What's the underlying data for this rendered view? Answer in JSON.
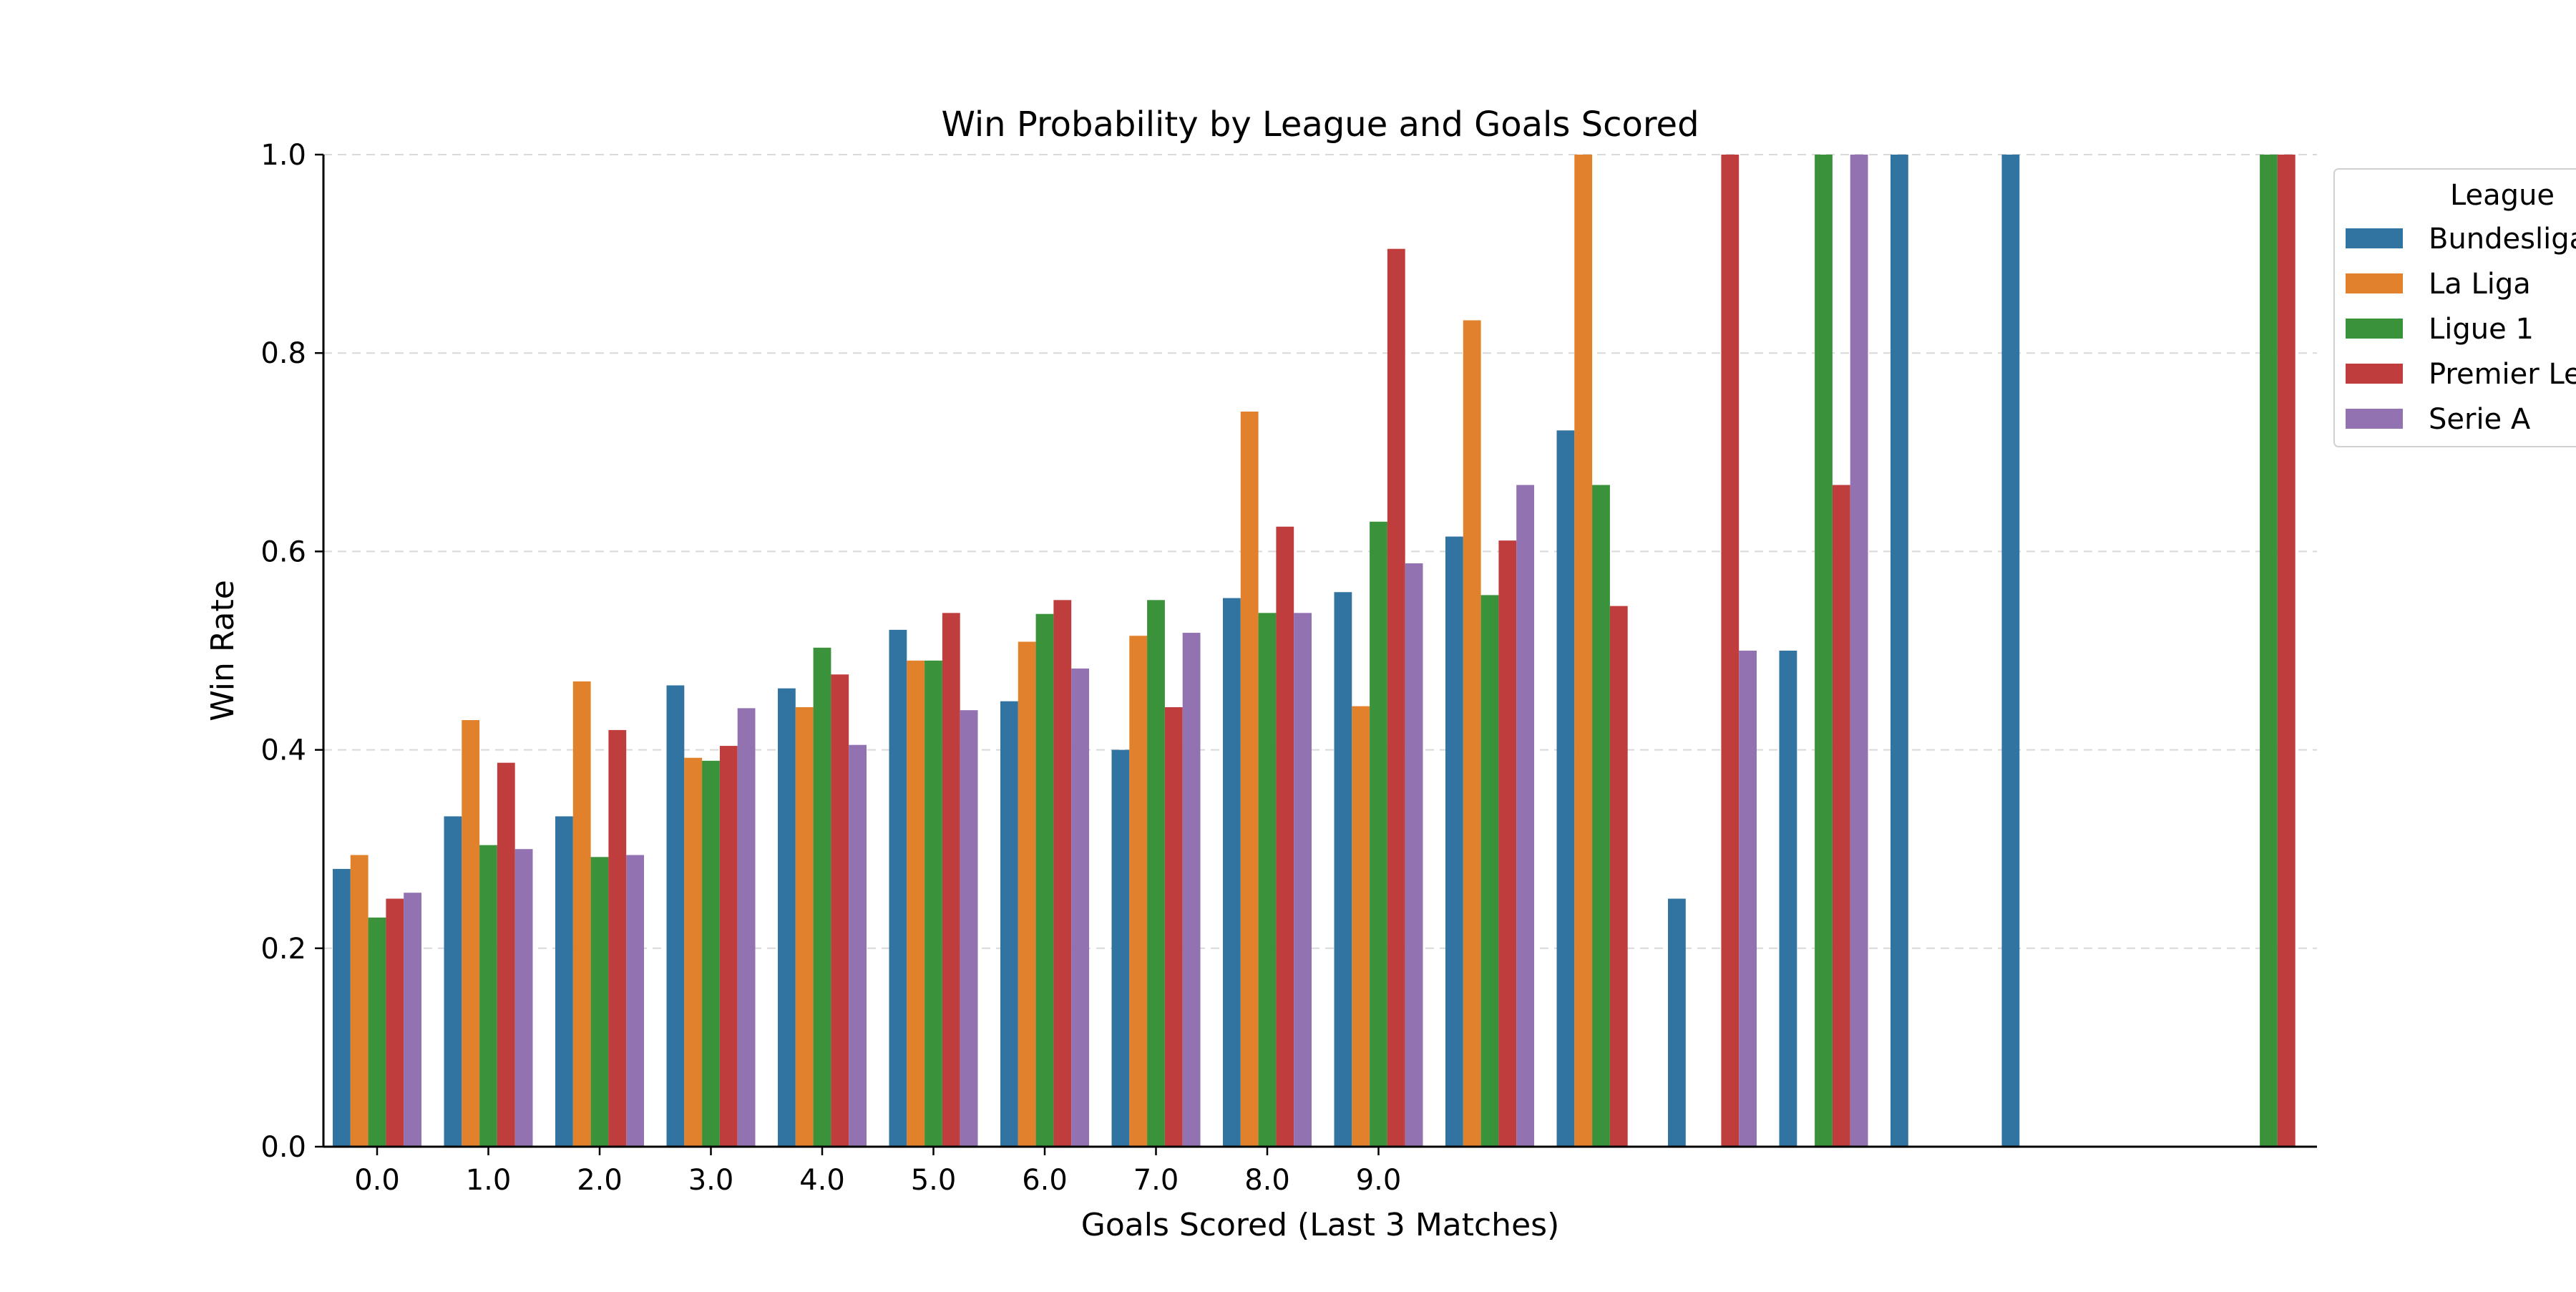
{
  "chart_data": {
    "type": "bar",
    "title": "Win Probability by League and Goals Scored",
    "xlabel": "Goals Scored (Last 3 Matches)",
    "ylabel": "Win Rate",
    "ylim": [
      0,
      1.0
    ],
    "yticks": [
      "0.0",
      "0.2",
      "0.4",
      "0.6",
      "0.8",
      "1.0"
    ],
    "categories": [
      "0.0",
      "1.0",
      "2.0",
      "3.0",
      "4.0",
      "5.0",
      "6.0",
      "7.0",
      "8.0",
      "9.0",
      "",
      "",
      "",
      "",
      "",
      "",
      "",
      ""
    ],
    "grid": "horizontal dashed",
    "legend_placement": "upper-right, outside",
    "legend_title": "League",
    "series": [
      {
        "name": "Bundesliga",
        "color": "#3274a1",
        "values": [
          0.28,
          0.333,
          0.333,
          0.465,
          0.462,
          0.521,
          0.449,
          0.4,
          0.553,
          0.559,
          0.615,
          0.722,
          0.25,
          0.5,
          1.0,
          1.0,
          null,
          null
        ]
      },
      {
        "name": "La Liga",
        "color": "#e1812c",
        "values": [
          0.294,
          0.43,
          0.469,
          0.392,
          0.443,
          0.49,
          0.509,
          0.515,
          0.741,
          0.444,
          0.833,
          1.0,
          null,
          null,
          null,
          null,
          null,
          null
        ]
      },
      {
        "name": "Ligue 1",
        "color": "#3a923a",
        "values": [
          0.231,
          0.304,
          0.292,
          0.389,
          0.503,
          0.49,
          0.537,
          0.551,
          0.538,
          0.63,
          0.556,
          0.667,
          null,
          1.0,
          null,
          null,
          null,
          1.0
        ]
      },
      {
        "name": "Premier League",
        "color": "#c03d3e",
        "values": [
          0.25,
          0.387,
          0.42,
          0.404,
          0.476,
          0.538,
          0.551,
          0.443,
          0.625,
          0.905,
          0.611,
          0.545,
          1.0,
          0.667,
          null,
          null,
          null,
          1.0
        ]
      },
      {
        "name": "Serie A",
        "color": "#9372b2",
        "values": [
          0.256,
          0.3,
          0.294,
          0.442,
          0.405,
          0.44,
          0.482,
          0.518,
          0.538,
          0.588,
          0.667,
          null,
          0.5,
          1.0,
          null,
          null,
          null,
          null
        ]
      }
    ]
  }
}
